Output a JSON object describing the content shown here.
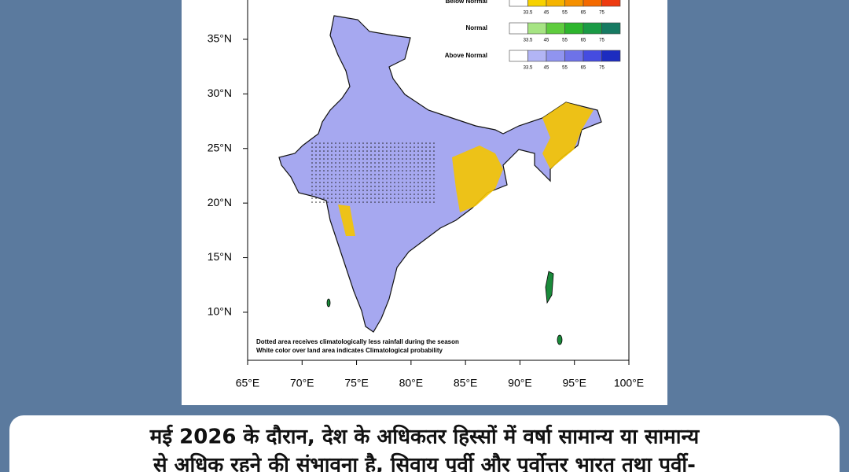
{
  "map": {
    "xlim": [
      65,
      100
    ],
    "ylim": [
      5.6,
      38.6
    ],
    "xticks": [
      {
        "value": 65,
        "label": "65°E"
      },
      {
        "value": 70,
        "label": "70°E"
      },
      {
        "value": 75,
        "label": "75°E"
      },
      {
        "value": 80,
        "label": "80°E"
      },
      {
        "value": 85,
        "label": "85°E"
      },
      {
        "value": 90,
        "label": "90°E"
      },
      {
        "value": 95,
        "label": "95°E"
      },
      {
        "value": 100,
        "label": "100°E"
      }
    ],
    "yticks": [
      {
        "value": 10,
        "label": "10°N"
      },
      {
        "value": 15,
        "label": "15°N"
      },
      {
        "value": 20,
        "label": "20°N"
      },
      {
        "value": 25,
        "label": "25°N"
      },
      {
        "value": 30,
        "label": "30°N"
      },
      {
        "value": 35,
        "label": "35°N"
      }
    ],
    "legend": [
      {
        "name": "Below Normal",
        "colors": [
          "#ffffff",
          "#f7d200",
          "#f5b400",
          "#f59000",
          "#f46a00",
          "#ee3a10"
        ],
        "ticks": [
          33.5,
          45,
          55,
          65,
          75
        ]
      },
      {
        "name": "Normal",
        "colors": [
          "#ffffff",
          "#a6e483",
          "#5fcc3e",
          "#2db52d",
          "#1a9a45",
          "#167a62"
        ],
        "ticks": [
          33.5,
          45,
          55,
          65,
          75
        ]
      },
      {
        "name": "Above Normal",
        "colors": [
          "#ffffff",
          "#b2b5f5",
          "#9094ef",
          "#6e72e8",
          "#454ce0",
          "#1c2cc0"
        ],
        "ticks": [
          33.5,
          45,
          55,
          65,
          75
        ]
      }
    ],
    "notes": [
      "Dotted area receives climatologically less rainfall during the season",
      "White color over land area indicates Climatological probability"
    ]
  },
  "caption": [
    "मई 2026 के दौरान, देश के अधिकतर हिस्सों में वर्षा सामान्य या सामान्य",
    "से अधिक रहने की संभावना है, सिवाय पूर्वी और पूर्वोत्तर भारत तथा पूर्वी-"
  ]
}
